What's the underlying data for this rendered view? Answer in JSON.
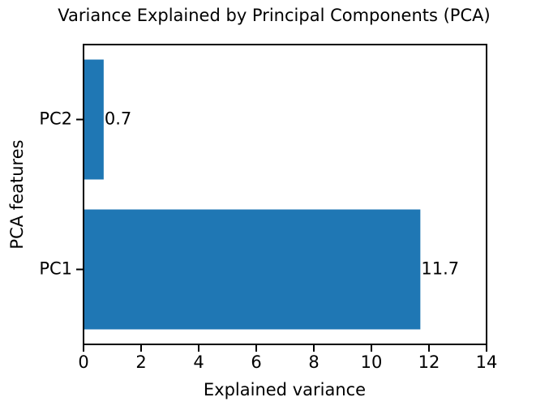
{
  "chart_data": {
    "type": "barh",
    "title": "Variance Explained by Principal Components (PCA)",
    "x_label": "Explained variance",
    "y_label": "PCA features",
    "categories": [
      "PC1",
      "PC2"
    ],
    "values": [
      11.7,
      0.7
    ],
    "color": "#1f77b4",
    "xlim": [
      0,
      14
    ],
    "xticks": [
      0,
      2,
      4,
      6,
      8,
      10,
      12,
      14
    ]
  }
}
